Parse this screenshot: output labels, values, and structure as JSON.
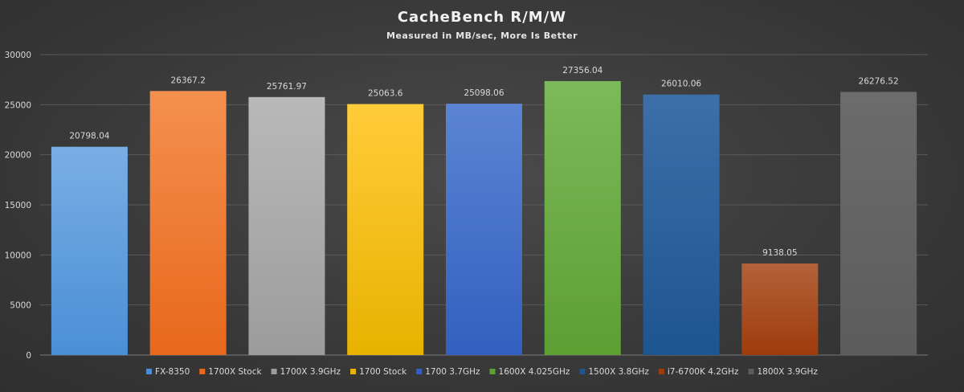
{
  "chart_data": {
    "type": "bar",
    "title": "CacheBench  R/M/W",
    "subtitle": "Measured  in  MB/sec,  More  Is  Better",
    "xlabel": "",
    "ylabel": "",
    "ylim": [
      0,
      30000
    ],
    "yticks": [
      0,
      5000,
      10000,
      15000,
      20000,
      25000,
      30000
    ],
    "grid": true,
    "legend_position": "bottom",
    "series": [
      {
        "name": "FX-8350",
        "value": 20798.04,
        "label": "20798.04",
        "color_top": "#79aee4",
        "color_bottom": "#4a8fd6"
      },
      {
        "name": "1700X Stock",
        "value": 26367.2,
        "label": "26367.2",
        "color_top": "#f4904f",
        "color_bottom": "#e8681c"
      },
      {
        "name": "1700X 3.9GHz",
        "value": 25761.97,
        "label": "25761.97",
        "color_top": "#b9b9b9",
        "color_bottom": "#9c9c9c"
      },
      {
        "name": "1700 Stock",
        "value": 25063.6,
        "label": "25063.6",
        "color_top": "#ffcc3a",
        "color_bottom": "#e8b200"
      },
      {
        "name": "1700 3.7GHz",
        "value": 25098.06,
        "label": "25098.06",
        "color_top": "#5b84d3",
        "color_bottom": "#3360c0"
      },
      {
        "name": "1600X 4.025GHz",
        "value": 27356.04,
        "label": "27356.04",
        "color_top": "#7cb95a",
        "color_bottom": "#5d9f33"
      },
      {
        "name": "1500X 3.8GHz",
        "value": 26010.06,
        "label": "26010.06",
        "color_top": "#3d6fa8",
        "color_bottom": "#1d5590"
      },
      {
        "name": "i7-6700K 4.2GHz",
        "value": 9138.05,
        "label": "9138.05",
        "color_top": "#b3623a",
        "color_bottom": "#9e3b0c"
      },
      {
        "name": "1800X 3.9GHz",
        "value": 26276.52,
        "label": "26276.52",
        "color_top": "#6c6c6c",
        "color_bottom": "#5c5c5c"
      }
    ]
  }
}
